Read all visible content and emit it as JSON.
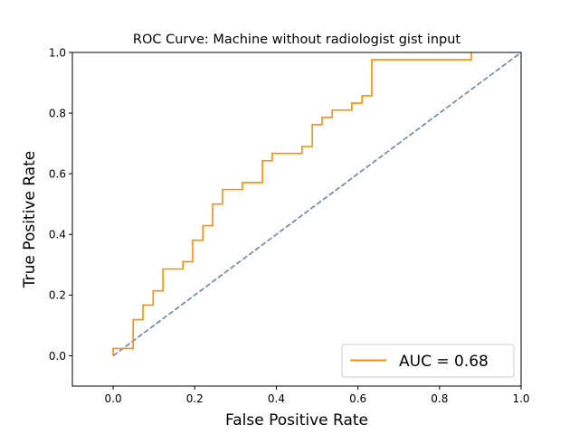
{
  "chart_data": {
    "type": "line",
    "title": "ROC Curve: Machine without radiologist gist input",
    "xlabel": "False Positive Rate",
    "ylabel": "True Positive Rate",
    "xlim": [
      -0.1,
      1.0
    ],
    "ylim": [
      -0.1,
      1.0
    ],
    "xticks": [
      0.0,
      0.2,
      0.4,
      0.6,
      0.8,
      1.0
    ],
    "xtick_labels": [
      "0.0",
      "0.2",
      "0.4",
      "0.6",
      "0.8",
      "1.0"
    ],
    "yticks": [
      0.0,
      0.2,
      0.4,
      0.6,
      0.8,
      1.0
    ],
    "ytick_labels": [
      "0.0",
      "0.2",
      "0.4",
      "0.6",
      "0.8",
      "1.0"
    ],
    "grid": false,
    "legend_position": "lower-right",
    "series": [
      {
        "name": "AUC = 0.68",
        "style": "solid",
        "color": "#ff8c00",
        "x": [
          0.0,
          0.0,
          0.049,
          0.049,
          0.073,
          0.073,
          0.098,
          0.098,
          0.122,
          0.122,
          0.171,
          0.171,
          0.195,
          0.195,
          0.22,
          0.22,
          0.244,
          0.244,
          0.268,
          0.268,
          0.317,
          0.317,
          0.366,
          0.366,
          0.39,
          0.39,
          0.463,
          0.463,
          0.488,
          0.488,
          0.512,
          0.512,
          0.537,
          0.537,
          0.585,
          0.585,
          0.61,
          0.61,
          0.634,
          0.634,
          0.878,
          0.878
        ],
        "y": [
          0.0,
          0.024,
          0.024,
          0.119,
          0.119,
          0.167,
          0.167,
          0.214,
          0.214,
          0.286,
          0.286,
          0.31,
          0.31,
          0.381,
          0.381,
          0.429,
          0.429,
          0.5,
          0.5,
          0.548,
          0.548,
          0.571,
          0.571,
          0.643,
          0.643,
          0.667,
          0.667,
          0.69,
          0.69,
          0.762,
          0.762,
          0.786,
          0.786,
          0.81,
          0.81,
          0.833,
          0.833,
          0.857,
          0.857,
          0.976,
          0.976,
          1.0
        ]
      },
      {
        "name": "",
        "style": "dashed",
        "color": "#6a84a4",
        "x": [
          0.0,
          1.0
        ],
        "y": [
          0.0,
          1.0
        ]
      }
    ]
  }
}
